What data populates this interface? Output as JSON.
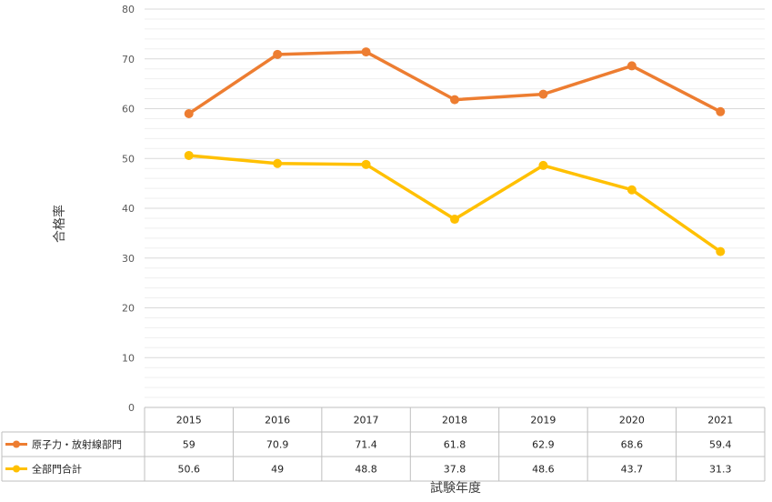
{
  "chart_data": {
    "type": "line",
    "title": "",
    "xlabel": "試験年度",
    "ylabel": "合格率",
    "ylim": [
      0,
      80
    ],
    "yticks": [
      0,
      10,
      20,
      30,
      40,
      50,
      60,
      70,
      80
    ],
    "grid": true,
    "legend": "data-table",
    "categories": [
      "2015",
      "2016",
      "2017",
      "2018",
      "2019",
      "2020",
      "2021"
    ],
    "series": [
      {
        "name": "原子力・放射線部門",
        "color": "#ED7D31",
        "values": [
          59,
          70.9,
          71.4,
          61.8,
          62.9,
          68.6,
          59.4
        ]
      },
      {
        "name": "全部門合計",
        "color": "#FFC000",
        "values": [
          50.6,
          49,
          48.8,
          37.8,
          48.6,
          43.7,
          31.3
        ]
      }
    ]
  }
}
